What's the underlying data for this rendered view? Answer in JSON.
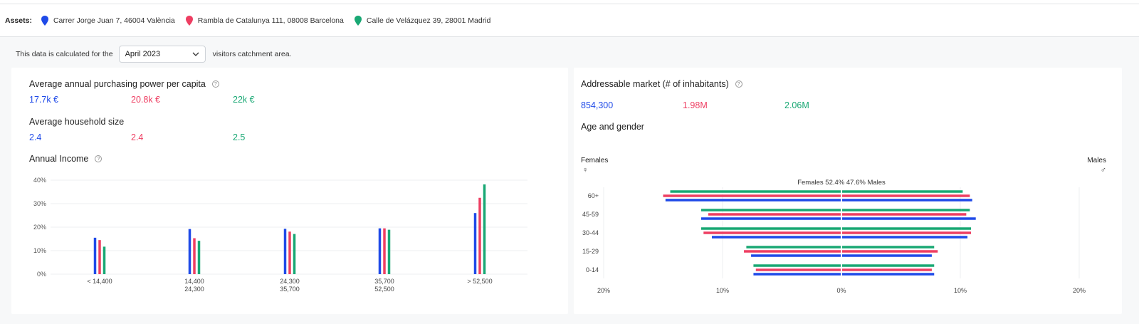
{
  "assets": {
    "label": "Assets:",
    "items": [
      {
        "name": "Carrer Jorge Juan 7, 46004 València",
        "color": "#1f4ae8",
        "icon": "map-pin-icon"
      },
      {
        "name": "Rambla de Catalunya 111, 08008 Barcelona",
        "color": "#ee3e62",
        "icon": "map-pin-icon"
      },
      {
        "name": "Calle de Velázquez 39, 28001 Madrid",
        "color": "#19a874",
        "icon": "map-pin-icon"
      }
    ]
  },
  "filter": {
    "prefix": "This data is calculated for the",
    "period": "April 2023",
    "suffix": "visitors catchment area."
  },
  "left": {
    "purchasing_title": "Average annual purchasing power per capita",
    "purchasing_values": [
      "17.7k €",
      "20.8k €",
      "22k €"
    ],
    "household_title": "Average household size",
    "household_values": [
      "2.4",
      "2.4",
      "2.5"
    ],
    "income_title": "Annual Income"
  },
  "right": {
    "market_title": "Addressable market (# of inhabitants)",
    "market_values": [
      "854,300",
      "1.98M",
      "2.06M"
    ],
    "age_title": "Age and gender",
    "females_label": "Females",
    "males_label": "Males",
    "center_label": "Females  52.4%  47.6%  Males"
  },
  "chart_data": [
    {
      "type": "bar",
      "title": "Annual Income",
      "categories": [
        [
          "< 14,400"
        ],
        [
          "14,400",
          "24,300"
        ],
        [
          "24,300",
          "35,700"
        ],
        [
          "35,700",
          "52,500"
        ],
        [
          "> 52,500"
        ]
      ],
      "yticks": [
        "0%",
        "10%",
        "20%",
        "30%",
        "40%"
      ],
      "ylim": [
        0,
        40
      ],
      "series": [
        {
          "color": "#1f4ae8",
          "values": [
            15.5,
            19.2,
            19.3,
            19.5,
            26
          ]
        },
        {
          "color": "#ee3e62",
          "values": [
            14.5,
            15.3,
            18.1,
            19.5,
            32.5
          ]
        },
        {
          "color": "#19a874",
          "values": [
            11.7,
            14.2,
            17.1,
            18.9,
            38.2
          ]
        }
      ],
      "grid": true
    },
    {
      "type": "bar",
      "orientation": "horizontal-pyramid",
      "title": "Age and gender",
      "categories": [
        "60+",
        "45-59",
        "30-44",
        "15-29",
        "0-14"
      ],
      "xticks": [
        "20%",
        "10%",
        "0%",
        "10%",
        "20%"
      ],
      "xlim": [
        -20,
        20
      ],
      "series": [
        {
          "color": "#19a874",
          "females": [
            14.4,
            11.8,
            11.8,
            8.0,
            7.4
          ],
          "males": [
            10.2,
            10.8,
            10.9,
            7.8,
            7.8
          ]
        },
        {
          "color": "#ee3e62",
          "females": [
            15.0,
            11.2,
            11.6,
            8.2,
            7.2
          ],
          "males": [
            10.8,
            10.5,
            10.9,
            8.1,
            7.6
          ]
        },
        {
          "color": "#1f4ae8",
          "females": [
            14.8,
            11.8,
            10.9,
            7.6,
            7.4
          ],
          "males": [
            11.0,
            11.3,
            10.6,
            7.6,
            7.8
          ]
        }
      ]
    }
  ]
}
